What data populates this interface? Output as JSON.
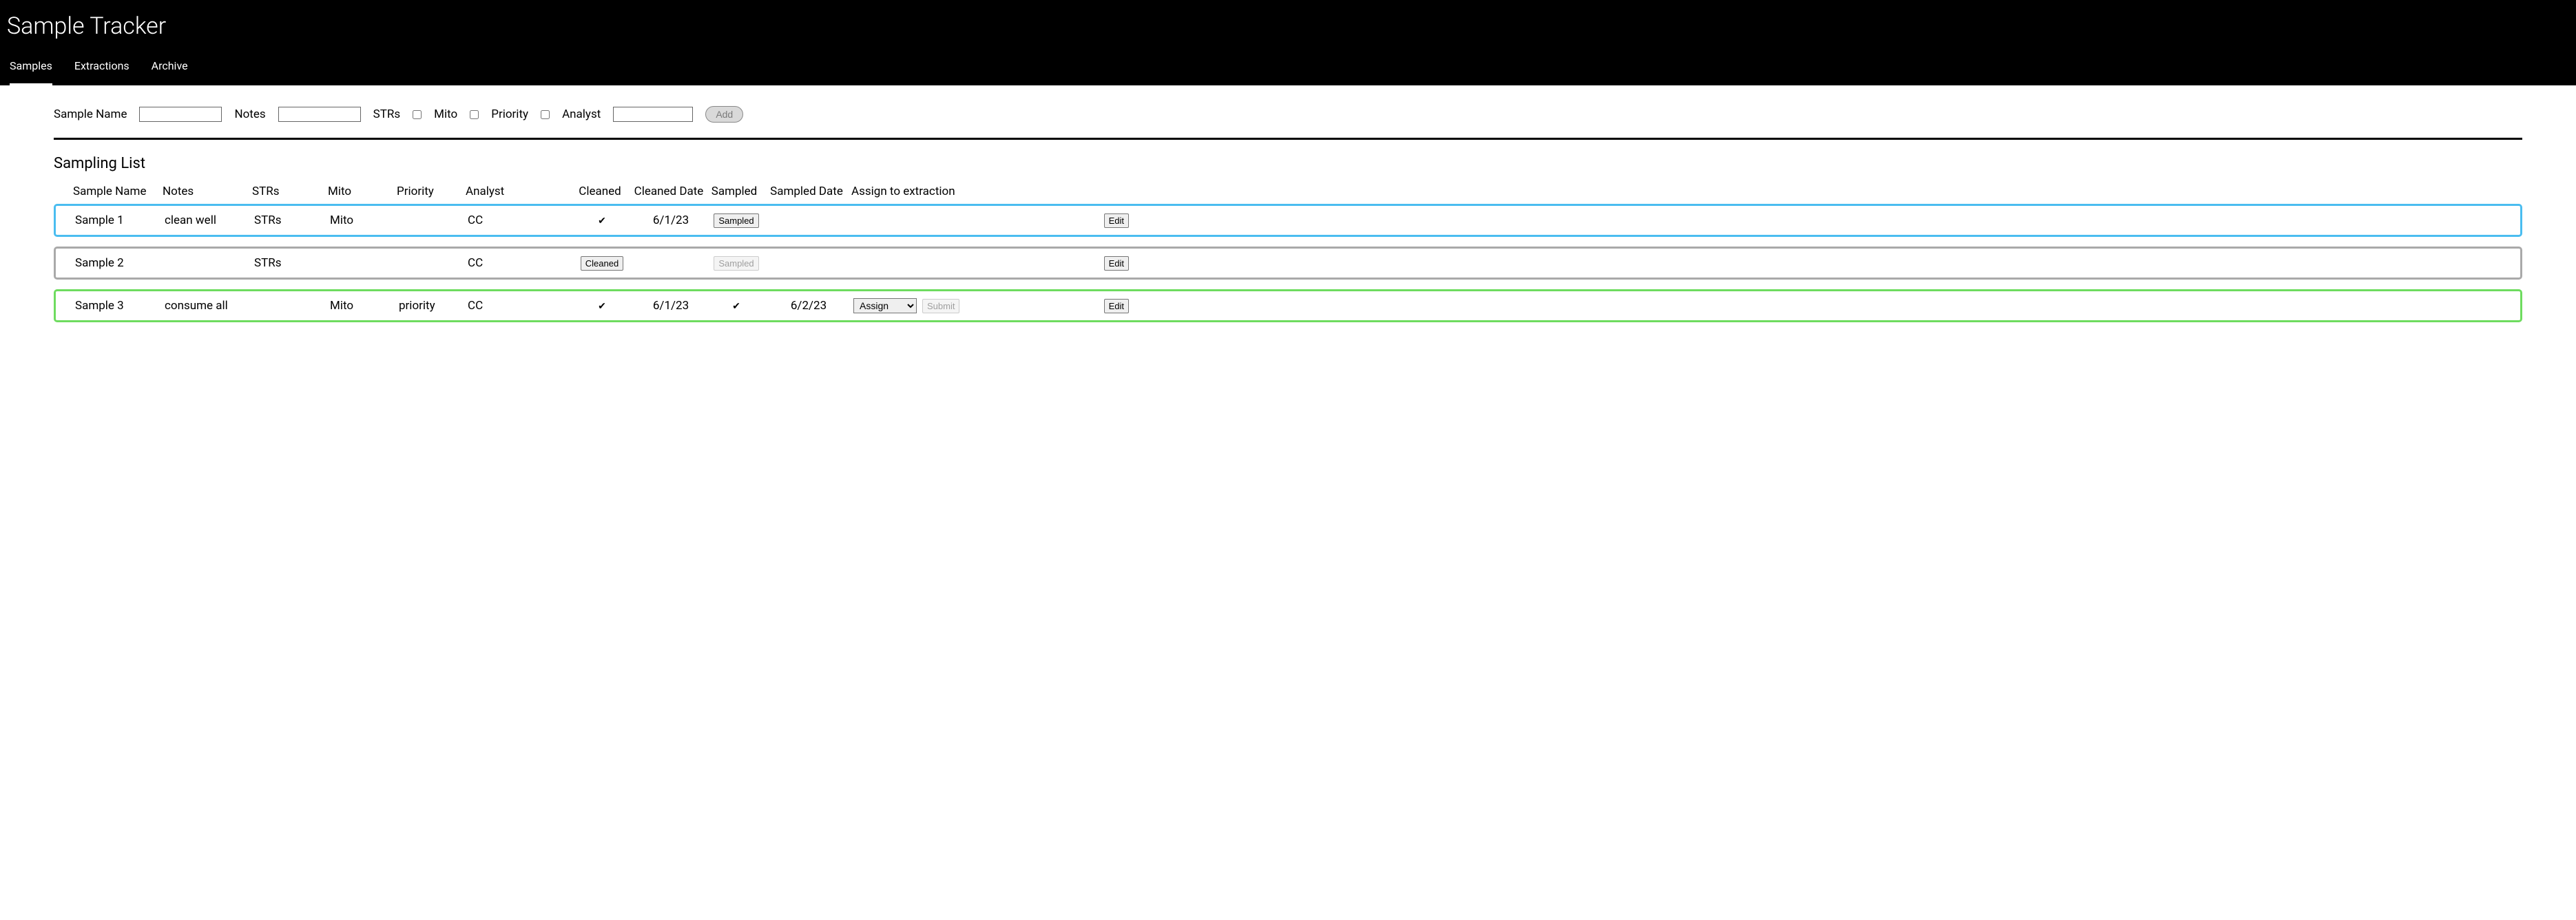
{
  "header": {
    "app_title": "Sample Tracker",
    "tabs": [
      {
        "label": "Samples",
        "active": true
      },
      {
        "label": "Extractions",
        "active": false
      },
      {
        "label": "Archive",
        "active": false
      }
    ]
  },
  "form": {
    "fields": {
      "sample_name": {
        "label": "Sample Name",
        "value": ""
      },
      "notes": {
        "label": "Notes",
        "value": ""
      },
      "strs": {
        "label": "STRs",
        "checked": false
      },
      "mito": {
        "label": "Mito",
        "checked": false
      },
      "priority": {
        "label": "Priority",
        "checked": false
      },
      "analyst": {
        "label": "Analyst",
        "value": ""
      }
    },
    "add_button_label": "Add"
  },
  "section_title": "Sampling List",
  "columns": {
    "sample_name": "Sample Name",
    "notes": "Notes",
    "strs": "STRs",
    "mito": "Mito",
    "priority": "Priority",
    "analyst": "Analyst",
    "cleaned": "Cleaned",
    "cleaned_date": "Cleaned Date",
    "sampled": "Sampled",
    "sampled_date": "Sampled Date",
    "assign": "Assign to extraction"
  },
  "button_labels": {
    "edit": "Edit",
    "cleaned": "Cleaned",
    "sampled": "Sampled",
    "submit": "Submit",
    "assign_default": "Assign"
  },
  "rows": [
    {
      "border_color": "#4abdf0",
      "sample_name": "Sample 1",
      "notes": "clean well",
      "strs": "STRs",
      "mito": "Mito",
      "priority": "",
      "analyst": "CC",
      "cleaned_state": "checked",
      "cleaned_date": "6/1/23",
      "sampled_state": "button_enabled",
      "sampled_date": "",
      "assign": false
    },
    {
      "border_color": "#a9a9a9",
      "sample_name": "Sample 2",
      "notes": "",
      "strs": "STRs",
      "mito": "",
      "priority": "",
      "analyst": "CC",
      "cleaned_state": "button_enabled",
      "cleaned_date": "",
      "sampled_state": "button_disabled",
      "sampled_date": "",
      "assign": false
    },
    {
      "border_color": "#6edc5f",
      "sample_name": "Sample 3",
      "notes": "consume all",
      "strs": "",
      "mito": "Mito",
      "priority": "priority",
      "analyst": "CC",
      "cleaned_state": "checked",
      "cleaned_date": "6/1/23",
      "sampled_state": "checked",
      "sampled_date": "6/2/23",
      "assign": true
    }
  ]
}
